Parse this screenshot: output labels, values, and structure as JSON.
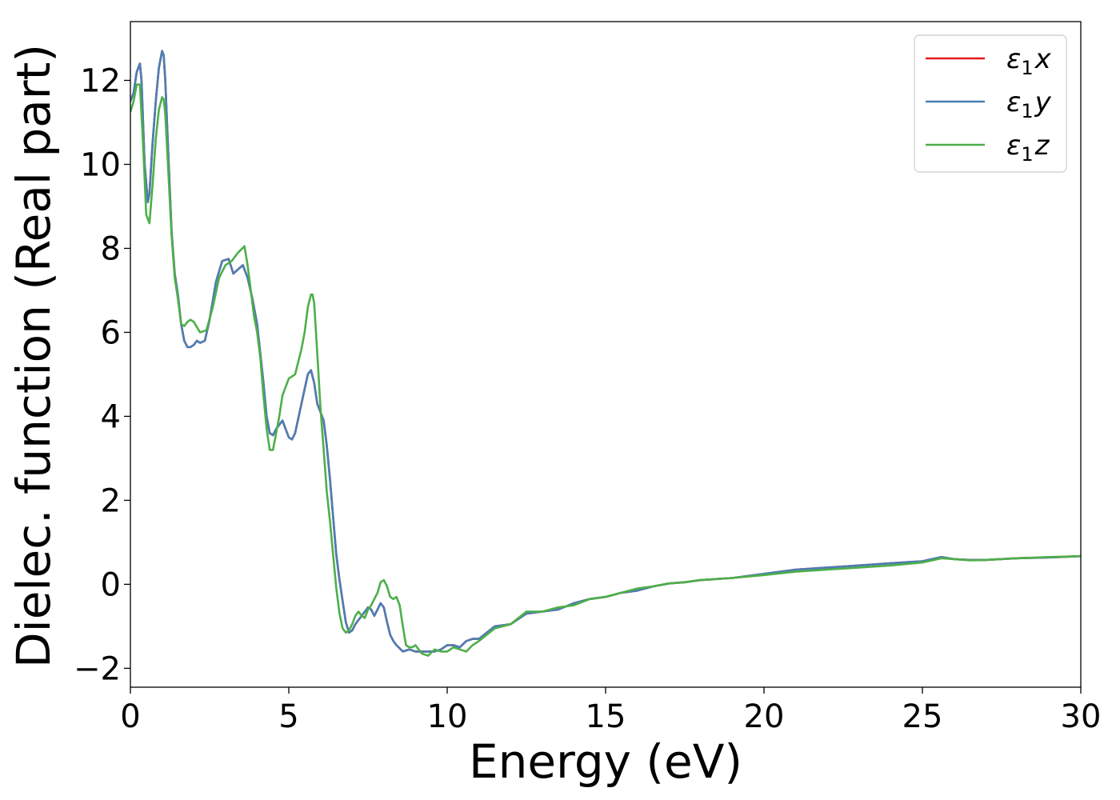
{
  "chart_data": {
    "type": "line",
    "title": "",
    "xlabel": "Energy (eV)",
    "ylabel": "Dielec. function (Real part)",
    "xlim": [
      0,
      30
    ],
    "ylim": [
      -2.45,
      13.4
    ],
    "xticks": [
      0,
      5,
      10,
      15,
      20,
      25,
      30
    ],
    "yticks": [
      -2,
      0,
      2,
      4,
      6,
      8,
      10,
      12
    ],
    "xtick_labels": [
      "0",
      "5",
      "10",
      "15",
      "20",
      "25",
      "30"
    ],
    "ytick_labels": [
      "−2",
      "0",
      "2",
      "4",
      "6",
      "8",
      "10",
      "12"
    ],
    "grid": false,
    "legend_position": "top-right",
    "series": [
      {
        "name": "ε1x",
        "legend_main": "ε",
        "legend_sub": "1",
        "legend_suffix": "x",
        "color": "#e41a1c",
        "x": [
          0,
          0.1,
          0.2,
          0.3,
          0.35,
          0.45,
          0.55,
          0.6,
          0.7,
          0.8,
          0.9,
          1.0,
          1.05,
          1.1,
          1.2,
          1.3,
          1.4,
          1.5,
          1.6,
          1.7,
          1.8,
          1.9,
          2.0,
          2.1,
          2.2,
          2.35,
          2.5,
          2.7,
          2.9,
          3.1,
          3.25,
          3.4,
          3.55,
          3.7,
          3.85,
          4.0,
          4.1,
          4.2,
          4.3,
          4.4,
          4.5,
          4.6,
          4.8,
          4.9,
          5.0,
          5.1,
          5.2,
          5.4,
          5.6,
          5.7,
          5.8,
          5.9,
          6.0,
          6.1,
          6.2,
          6.3,
          6.4,
          6.5,
          6.6,
          6.7,
          6.8,
          6.9,
          7.0,
          7.1,
          7.2,
          7.35,
          7.5,
          7.6,
          7.7,
          7.8,
          7.9,
          8.0,
          8.1,
          8.2,
          8.3,
          8.4,
          8.6,
          8.8,
          9.0,
          9.2,
          9.4,
          9.6,
          9.8,
          10.0,
          10.2,
          10.4,
          10.6,
          10.8,
          11.0,
          11.5,
          12.0,
          12.5,
          13.0,
          13.5,
          14.0,
          14.5,
          15.0,
          15.5,
          16.0,
          16.5,
          17.0,
          17.5,
          18.0,
          19.0,
          20.0,
          21.0,
          22.0,
          23.0,
          24.0,
          25.0,
          25.6,
          26.0,
          26.5,
          27.0,
          28.0,
          29.0,
          30.0
        ],
        "y": [
          11.5,
          11.7,
          12.2,
          12.4,
          12.0,
          10.0,
          9.1,
          9.3,
          10.5,
          11.5,
          12.3,
          12.7,
          12.6,
          12.0,
          10.2,
          8.4,
          7.4,
          6.9,
          6.2,
          5.8,
          5.65,
          5.65,
          5.7,
          5.8,
          5.75,
          5.8,
          6.3,
          7.2,
          7.7,
          7.75,
          7.4,
          7.5,
          7.6,
          7.3,
          6.8,
          6.2,
          5.5,
          4.8,
          4.0,
          3.6,
          3.55,
          3.7,
          3.9,
          3.7,
          3.5,
          3.45,
          3.6,
          4.3,
          5.0,
          5.1,
          4.8,
          4.3,
          4.1,
          3.9,
          3.3,
          2.5,
          1.6,
          0.7,
          0.1,
          -0.4,
          -0.9,
          -1.15,
          -1.1,
          -0.95,
          -0.85,
          -0.7,
          -0.55,
          -0.6,
          -0.75,
          -0.6,
          -0.45,
          -0.55,
          -0.9,
          -1.2,
          -1.35,
          -1.45,
          -1.6,
          -1.55,
          -1.6,
          -1.6,
          -1.6,
          -1.6,
          -1.55,
          -1.45,
          -1.45,
          -1.5,
          -1.35,
          -1.3,
          -1.3,
          -1.0,
          -0.95,
          -0.7,
          -0.65,
          -0.6,
          -0.45,
          -0.35,
          -0.3,
          -0.2,
          -0.15,
          -0.05,
          0.02,
          0.05,
          0.1,
          0.15,
          0.25,
          0.35,
          0.4,
          0.45,
          0.5,
          0.55,
          0.65,
          0.6,
          0.58,
          0.58,
          0.62,
          0.64,
          0.67
        ]
      },
      {
        "name": "ε1y",
        "legend_main": "ε",
        "legend_sub": "1",
        "legend_suffix": "y",
        "color": "#4a7eb5",
        "x": [
          0,
          0.1,
          0.2,
          0.3,
          0.35,
          0.45,
          0.55,
          0.6,
          0.7,
          0.8,
          0.9,
          1.0,
          1.05,
          1.1,
          1.2,
          1.3,
          1.4,
          1.5,
          1.6,
          1.7,
          1.8,
          1.9,
          2.0,
          2.1,
          2.2,
          2.35,
          2.5,
          2.7,
          2.9,
          3.1,
          3.25,
          3.4,
          3.55,
          3.7,
          3.85,
          4.0,
          4.1,
          4.2,
          4.3,
          4.4,
          4.5,
          4.6,
          4.8,
          4.9,
          5.0,
          5.1,
          5.2,
          5.4,
          5.6,
          5.7,
          5.8,
          5.9,
          6.0,
          6.1,
          6.2,
          6.3,
          6.4,
          6.5,
          6.6,
          6.7,
          6.8,
          6.9,
          7.0,
          7.1,
          7.2,
          7.35,
          7.5,
          7.6,
          7.7,
          7.8,
          7.9,
          8.0,
          8.1,
          8.2,
          8.3,
          8.4,
          8.6,
          8.8,
          9.0,
          9.2,
          9.4,
          9.6,
          9.8,
          10.0,
          10.2,
          10.4,
          10.6,
          10.8,
          11.0,
          11.5,
          12.0,
          12.5,
          13.0,
          13.5,
          14.0,
          14.5,
          15.0,
          15.5,
          16.0,
          16.5,
          17.0,
          17.5,
          18.0,
          19.0,
          20.0,
          21.0,
          22.0,
          23.0,
          24.0,
          25.0,
          25.6,
          26.0,
          26.5,
          27.0,
          28.0,
          29.0,
          30.0
        ],
        "y": [
          11.5,
          11.7,
          12.2,
          12.4,
          12.0,
          10.0,
          9.1,
          9.3,
          10.5,
          11.5,
          12.3,
          12.7,
          12.6,
          12.0,
          10.2,
          8.4,
          7.4,
          6.9,
          6.2,
          5.8,
          5.65,
          5.65,
          5.7,
          5.8,
          5.75,
          5.8,
          6.3,
          7.2,
          7.7,
          7.75,
          7.4,
          7.5,
          7.6,
          7.3,
          6.8,
          6.2,
          5.5,
          4.8,
          4.0,
          3.6,
          3.55,
          3.7,
          3.9,
          3.7,
          3.5,
          3.45,
          3.6,
          4.3,
          5.0,
          5.1,
          4.8,
          4.3,
          4.1,
          3.9,
          3.3,
          2.5,
          1.6,
          0.7,
          0.1,
          -0.4,
          -0.9,
          -1.15,
          -1.1,
          -0.95,
          -0.85,
          -0.7,
          -0.55,
          -0.6,
          -0.75,
          -0.6,
          -0.45,
          -0.55,
          -0.9,
          -1.2,
          -1.35,
          -1.45,
          -1.6,
          -1.55,
          -1.6,
          -1.6,
          -1.6,
          -1.6,
          -1.55,
          -1.45,
          -1.45,
          -1.5,
          -1.35,
          -1.3,
          -1.3,
          -1.0,
          -0.95,
          -0.7,
          -0.65,
          -0.6,
          -0.45,
          -0.35,
          -0.3,
          -0.2,
          -0.15,
          -0.05,
          0.02,
          0.05,
          0.1,
          0.15,
          0.25,
          0.35,
          0.4,
          0.45,
          0.5,
          0.55,
          0.65,
          0.6,
          0.58,
          0.58,
          0.62,
          0.64,
          0.67
        ]
      },
      {
        "name": "ε1z",
        "legend_main": "ε",
        "legend_sub": "1",
        "legend_suffix": "z",
        "color": "#4daf4a",
        "x": [
          0,
          0.1,
          0.2,
          0.3,
          0.4,
          0.5,
          0.6,
          0.7,
          0.8,
          0.9,
          1.0,
          1.05,
          1.1,
          1.2,
          1.3,
          1.4,
          1.5,
          1.6,
          1.7,
          1.8,
          1.9,
          2.0,
          2.2,
          2.4,
          2.6,
          2.8,
          3.0,
          3.2,
          3.4,
          3.6,
          3.7,
          3.8,
          3.9,
          4.0,
          4.1,
          4.2,
          4.3,
          4.4,
          4.5,
          4.6,
          4.7,
          4.8,
          5.0,
          5.2,
          5.4,
          5.5,
          5.6,
          5.7,
          5.75,
          5.8,
          5.9,
          6.0,
          6.1,
          6.2,
          6.3,
          6.4,
          6.5,
          6.6,
          6.7,
          6.8,
          6.9,
          7.0,
          7.1,
          7.2,
          7.3,
          7.4,
          7.5,
          7.6,
          7.7,
          7.8,
          7.9,
          8.0,
          8.1,
          8.2,
          8.3,
          8.4,
          8.5,
          8.6,
          8.7,
          8.8,
          8.9,
          9.0,
          9.2,
          9.4,
          9.6,
          9.8,
          10.0,
          10.2,
          10.4,
          10.6,
          10.8,
          11.0,
          11.5,
          12.0,
          12.5,
          13.0,
          13.5,
          14.0,
          14.5,
          15.0,
          15.5,
          16.0,
          16.5,
          17.0,
          17.5,
          18.0,
          19.0,
          20.0,
          21.0,
          22.0,
          23.0,
          24.0,
          25.0,
          25.6,
          26.0,
          26.5,
          27.0,
          28.0,
          29.0,
          30.0
        ],
        "y": [
          11.25,
          11.5,
          11.9,
          11.9,
          10.5,
          8.8,
          8.6,
          9.5,
          10.6,
          11.3,
          11.6,
          11.55,
          11.2,
          9.8,
          8.3,
          7.3,
          6.8,
          6.2,
          6.15,
          6.25,
          6.3,
          6.25,
          6.0,
          6.05,
          6.6,
          7.3,
          7.6,
          7.7,
          7.9,
          8.05,
          7.6,
          7.0,
          6.4,
          6.0,
          5.4,
          4.5,
          3.7,
          3.2,
          3.2,
          3.6,
          4.0,
          4.5,
          4.9,
          5.0,
          5.6,
          6.0,
          6.6,
          6.9,
          6.9,
          6.7,
          5.5,
          4.2,
          3.2,
          2.2,
          1.5,
          0.7,
          -0.1,
          -0.7,
          -1.05,
          -1.15,
          -1.1,
          -0.95,
          -0.75,
          -0.65,
          -0.75,
          -0.8,
          -0.6,
          -0.5,
          -0.35,
          -0.2,
          0.05,
          0.1,
          -0.05,
          -0.3,
          -0.35,
          -0.3,
          -0.5,
          -1.0,
          -1.45,
          -1.5,
          -1.5,
          -1.45,
          -1.65,
          -1.7,
          -1.55,
          -1.6,
          -1.6,
          -1.5,
          -1.55,
          -1.6,
          -1.45,
          -1.35,
          -1.05,
          -0.95,
          -0.65,
          -0.65,
          -0.55,
          -0.5,
          -0.35,
          -0.3,
          -0.2,
          -0.1,
          -0.05,
          0.02,
          0.05,
          0.1,
          0.15,
          0.22,
          0.3,
          0.35,
          0.4,
          0.45,
          0.52,
          0.62,
          0.6,
          0.57,
          0.58,
          0.62,
          0.65,
          0.67
        ]
      }
    ]
  }
}
